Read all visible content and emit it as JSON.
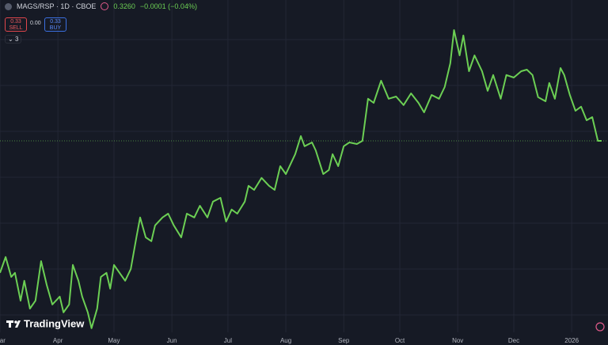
{
  "toolbar": {
    "symbol": "MAGS/RSP · 1D · CBOE",
    "last": "0.3260",
    "change": "−0.0001 (−0.04%)",
    "sell_price": "0.33",
    "sell_label": "SELL",
    "spread": "0.00",
    "buy_price": "0.33",
    "buy_label": "BUY",
    "indicators": "3"
  },
  "brand": "TradingView",
  "chart_data": {
    "type": "line",
    "color": "#6ccf54",
    "x": [
      0,
      3,
      6,
      8,
      11,
      13,
      16,
      19,
      22,
      25,
      28,
      32,
      34,
      37,
      39,
      42,
      44,
      47,
      49,
      52,
      54,
      57,
      59,
      61,
      64,
      67,
      70,
      73,
      75,
      78,
      81,
      83,
      87,
      90,
      93,
      97,
      100,
      104,
      107,
      111,
      114,
      118,
      121,
      124,
      127,
      131,
      133,
      136,
      140,
      144,
      147,
      150,
      153,
      158,
      161,
      163,
      167,
      169,
      173,
      176,
      178,
      181,
      184,
      187,
      191,
      194,
      197,
      200,
      204,
      208,
      212,
      216,
      220,
      224,
      227,
      231,
      235,
      238,
      241,
      243,
      246,
      248,
      251,
      254,
      258,
      261,
      264,
      268,
      271,
      275,
      279,
      282,
      285,
      288,
      292,
      294,
      297,
      300,
      302,
      305,
      308,
      311,
      314,
      317,
      320,
      322
    ],
    "values": [
      0.2843,
      0.2893,
      0.283,
      0.2843,
      0.2755,
      0.2818,
      0.273,
      0.2755,
      0.288,
      0.2805,
      0.2743,
      0.2768,
      0.2718,
      0.2743,
      0.2868,
      0.2818,
      0.2768,
      0.2718,
      0.2668,
      0.273,
      0.283,
      0.2843,
      0.2793,
      0.2868,
      0.2843,
      0.2818,
      0.2855,
      0.2955,
      0.3018,
      0.2955,
      0.2943,
      0.2993,
      0.3018,
      0.303,
      0.2993,
      0.2955,
      0.303,
      0.3018,
      0.3055,
      0.3018,
      0.3068,
      0.308,
      0.3005,
      0.3043,
      0.303,
      0.3068,
      0.3118,
      0.3105,
      0.3143,
      0.3118,
      0.3105,
      0.318,
      0.3155,
      0.3218,
      0.3275,
      0.3243,
      0.3255,
      0.323,
      0.3155,
      0.3168,
      0.3218,
      0.318,
      0.3243,
      0.3255,
      0.325,
      0.326,
      0.3393,
      0.338,
      0.345,
      0.3393,
      0.34,
      0.3373,
      0.341,
      0.338,
      0.335,
      0.3405,
      0.3393,
      0.343,
      0.3505,
      0.361,
      0.353,
      0.3593,
      0.348,
      0.353,
      0.348,
      0.3418,
      0.3468,
      0.3393,
      0.3468,
      0.346,
      0.348,
      0.3485,
      0.3468,
      0.3398,
      0.3385,
      0.3443,
      0.3393,
      0.349,
      0.3468,
      0.3405,
      0.3355,
      0.3368,
      0.3325,
      0.3335,
      0.326,
      0.326
    ],
    "xlim": [
      0,
      325
    ],
    "ylim": [
      0.2615,
      0.3705
    ],
    "xticks": [
      {
        "value": 0,
        "label": "Mar"
      },
      {
        "value": 31,
        "label": "Apr"
      },
      {
        "value": 61,
        "label": "May"
      },
      {
        "value": 92,
        "label": "Jun"
      },
      {
        "value": 122,
        "label": "Jul"
      },
      {
        "value": 153,
        "label": "Aug"
      },
      {
        "value": 184,
        "label": "Sep"
      },
      {
        "value": 214,
        "label": "Oct"
      },
      {
        "value": 245,
        "label": "Nov"
      },
      {
        "value": 275,
        "label": "Dec"
      },
      {
        "value": 306,
        "label": "2026"
      }
    ],
    "grid": true
  }
}
